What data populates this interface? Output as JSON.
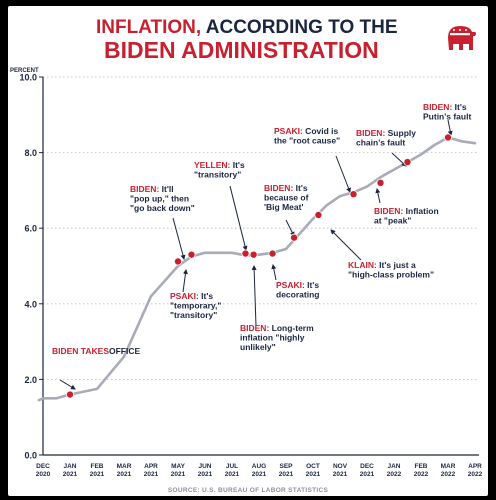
{
  "title": {
    "accent": "INFLATION,",
    "rest": " ACCORDING TO THE",
    "line2": "BIDEN ADMINISTRATION"
  },
  "logo_icon": "gop-elephant-icon",
  "source": "SOURCE: U.S. BUREAU OF LABOR STATISTICS",
  "colors": {
    "accent": "#c8202f",
    "dark": "#1a2540",
    "line": "#a9acb8",
    "point": "#c8202f"
  },
  "chart_data": {
    "type": "line",
    "ylabel": "PERCENT",
    "ylim": [
      0,
      10
    ],
    "yticks": [
      "0.0",
      "2.0",
      "4.0",
      "6.0",
      "8.0",
      "10.0"
    ],
    "grid": true,
    "x_labels": [
      [
        "DEC",
        "2020"
      ],
      [
        "JAN",
        "2021"
      ],
      [
        "FEB",
        "2021"
      ],
      [
        "MAR",
        "2021"
      ],
      [
        "APR",
        "2021"
      ],
      [
        "MAY",
        "2021"
      ],
      [
        "JUN",
        "2021"
      ],
      [
        "JUL",
        "2021"
      ],
      [
        "AUG",
        "2021"
      ],
      [
        "SEP",
        "2021"
      ],
      [
        "OCT",
        "2021"
      ],
      [
        "NOV",
        "2021"
      ],
      [
        "DEC",
        "2021"
      ],
      [
        "JAN",
        "2022"
      ],
      [
        "FEB",
        "2022"
      ],
      [
        "MAR",
        "2022"
      ],
      [
        "APR",
        "2022"
      ]
    ],
    "series": [
      {
        "points": [
          [
            -0.15,
            1.45
          ],
          [
            0,
            1.5
          ],
          [
            0.5,
            1.5
          ],
          [
            1,
            1.6
          ],
          [
            2,
            1.75
          ],
          [
            3,
            2.6
          ],
          [
            4,
            4.2
          ],
          [
            5,
            5.0
          ],
          [
            5.5,
            5.25
          ],
          [
            6,
            5.35
          ],
          [
            7,
            5.35
          ],
          [
            7.5,
            5.28
          ],
          [
            8,
            5.3
          ],
          [
            8.5,
            5.35
          ],
          [
            9,
            5.45
          ],
          [
            9.5,
            5.85
          ],
          [
            10,
            6.25
          ],
          [
            10.5,
            6.6
          ],
          [
            11,
            6.85
          ],
          [
            11.5,
            6.95
          ],
          [
            12,
            7.1
          ],
          [
            12.5,
            7.35
          ],
          [
            13,
            7.55
          ],
          [
            13.5,
            7.75
          ],
          [
            14,
            7.95
          ],
          [
            14.5,
            8.2
          ],
          [
            15,
            8.4
          ],
          [
            15.5,
            8.3
          ],
          [
            16,
            8.25
          ]
        ]
      }
    ],
    "annotations": [
      {
        "id": "biden-takes-office",
        "point": [
          1,
          1.6
        ],
        "name": "BIDEN TAKES",
        "lines": [
          "OFFICE"
        ]
      },
      {
        "id": "biden-pop-up",
        "point": [
          5,
          5.12
        ],
        "name": "BIDEN:",
        "lines": [
          " It'll",
          "\"pop up,\" then",
          "\"go back down\""
        ]
      },
      {
        "id": "psaki-temporary",
        "point": [
          5.5,
          5.3
        ],
        "name": "PSAKI:",
        "lines": [
          " It's",
          "\"temporary,\"",
          "\"transitory\""
        ]
      },
      {
        "id": "yellen-transitory",
        "point": [
          7.5,
          5.33
        ],
        "name": "YELLEN:",
        "lines": [
          " It's",
          "\"transitory\""
        ]
      },
      {
        "id": "biden-long-term",
        "point": [
          7.8,
          5.3
        ],
        "name": "BIDEN:",
        "lines": [
          " Long-term",
          "inflation \"highly",
          "unlikely\""
        ]
      },
      {
        "id": "psaki-decorating",
        "point": [
          8.5,
          5.33
        ],
        "name": "PSAKI:",
        "lines": [
          " It's",
          "decorating"
        ]
      },
      {
        "id": "biden-big-meat",
        "point": [
          9.3,
          5.75
        ],
        "name": "BIDEN:",
        "lines": [
          " It's",
          "because of",
          "'Big Meat'"
        ]
      },
      {
        "id": "klain-high-class",
        "point": [
          10.2,
          6.35
        ],
        "name": "KLAIN:",
        "lines": [
          " It's just a",
          "\"high-class problem\""
        ]
      },
      {
        "id": "psaki-root-cause",
        "point": [
          11.5,
          6.9
        ],
        "name": "PSAKI:",
        "lines": [
          " Covid is",
          "the \"root cause\""
        ]
      },
      {
        "id": "biden-supply-chain",
        "point": [
          12.5,
          7.2
        ],
        "name": "BIDEN:",
        "lines": [
          " Supply",
          "chain's fault"
        ]
      },
      {
        "id": "biden-peak",
        "point": [
          13.5,
          7.75
        ],
        "name": "BIDEN:",
        "lines": [
          " Inflation",
          "at \"peak\""
        ]
      },
      {
        "id": "biden-putin",
        "point": [
          15,
          8.4
        ],
        "name": "BIDEN:",
        "lines": [
          " It's",
          "Putin's fault"
        ]
      }
    ]
  }
}
